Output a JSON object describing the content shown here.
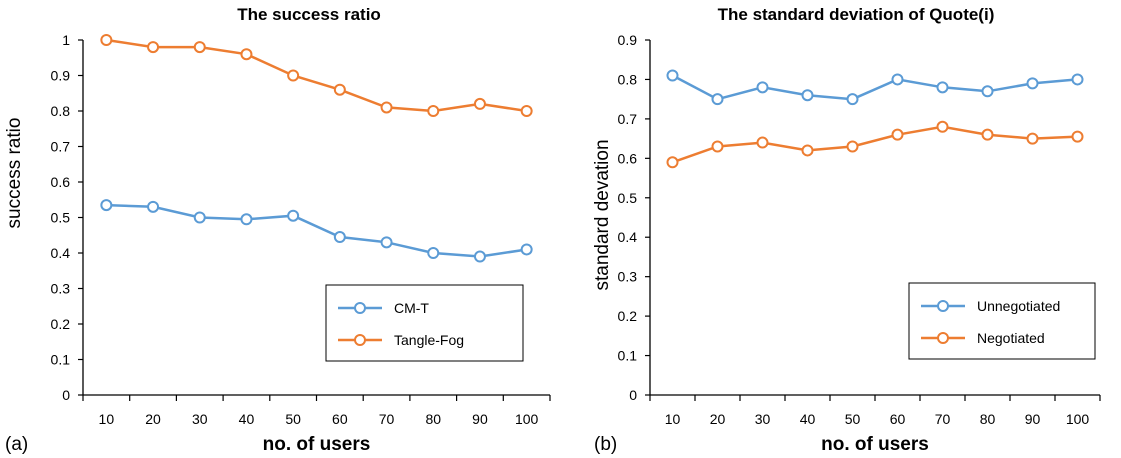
{
  "chart_data": [
    {
      "panel_label": "(a)",
      "type": "line",
      "title": "The success ratio",
      "xlabel": "no. of users",
      "ylabel": "success ratio",
      "categories": [
        "10",
        "20",
        "30",
        "40",
        "50",
        "60",
        "70",
        "80",
        "90",
        "100"
      ],
      "ylim": [
        0,
        1
      ],
      "yticks": [
        "0",
        "0.1",
        "0.2",
        "0.3",
        "0.4",
        "0.5",
        "0.6",
        "0.7",
        "0.8",
        "0.9",
        "1"
      ],
      "grid": false,
      "legend_position": "bottom-right",
      "series": [
        {
          "name": "CM-T",
          "color": "#5B9BD5",
          "values": [
            0.535,
            0.53,
            0.5,
            0.495,
            0.505,
            0.445,
            0.43,
            0.4,
            0.39,
            0.41
          ]
        },
        {
          "name": "Tangle-Fog",
          "color": "#ED7D31",
          "values": [
            1.0,
            0.98,
            0.98,
            0.96,
            0.9,
            0.86,
            0.81,
            0.8,
            0.82,
            0.8
          ]
        }
      ]
    },
    {
      "panel_label": "(b)",
      "type": "line",
      "title": "The standard deviation of Quote(i)",
      "xlabel": "no. of users",
      "ylabel": "standard devation",
      "categories": [
        "10",
        "20",
        "30",
        "40",
        "50",
        "60",
        "70",
        "80",
        "90",
        "100"
      ],
      "ylim": [
        0,
        0.9
      ],
      "yticks": [
        "0",
        "0.1",
        "0.2",
        "0.3",
        "0.4",
        "0.5",
        "0.6",
        "0.7",
        "0.8",
        "0.9"
      ],
      "grid": false,
      "legend_position": "bottom-right",
      "series": [
        {
          "name": "Unnegotiated",
          "color": "#5B9BD5",
          "values": [
            0.81,
            0.75,
            0.78,
            0.76,
            0.75,
            0.8,
            0.78,
            0.77,
            0.79,
            0.8
          ]
        },
        {
          "name": "Negotiated",
          "color": "#ED7D31",
          "values": [
            0.59,
            0.63,
            0.64,
            0.62,
            0.63,
            0.66,
            0.68,
            0.66,
            0.65,
            0.655
          ]
        }
      ]
    }
  ]
}
